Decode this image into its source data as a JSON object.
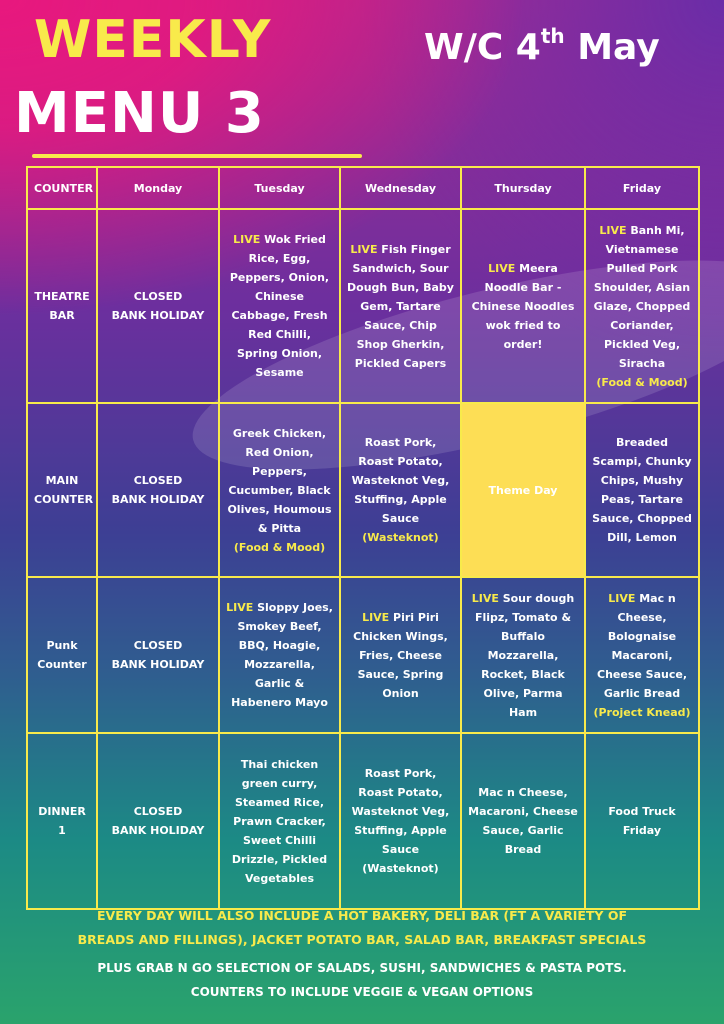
{
  "header": {
    "title_line1": "WEEKLY",
    "title_line2": "MENU 3",
    "week_prefix": "W/C 4",
    "week_suffix": "th",
    "week_month": " May"
  },
  "table": {
    "headers": [
      "COUNTER",
      "Monday",
      "Tuesday",
      "Wednesday",
      "Thursday",
      "Friday"
    ],
    "live_tag": "LIVE",
    "rows": [
      {
        "counter": [
          "THEATRE",
          "BAR"
        ],
        "monday": [
          "CLOSED",
          "BANK HOLIDAY"
        ],
        "tuesday": {
          "rest": " Wok Fried Rice, Egg, Peppers, Onion, Chinese Cabbage, Fresh Red Chilli, Spring Onion, Sesame"
        },
        "wednesday": {
          "rest": " Fish Finger Sandwich, Sour Dough Bun, Baby Gem, Tartare Sauce, Chip Shop Gherkin, Pickled Capers"
        },
        "thursday": {
          "rest": " Meera Noodle Bar - Chinese Noodles wok fried to order!"
        },
        "friday": {
          "rest": " Banh Mi, Vietnamese Pulled Pork Shoulder, Asian Glaze, Chopped Coriander, Pickled Veg, Siracha",
          "tag": "(Food & Mood)"
        }
      },
      {
        "counter": [
          "MAIN",
          "COUNTER"
        ],
        "monday": [
          "CLOSED",
          "BANK HOLIDAY"
        ],
        "tuesday": {
          "text": "Greek Chicken, Red Onion, Peppers, Cucumber, Black Olives, Houmous & Pitta",
          "tag": "(Food & Mood)"
        },
        "wednesday": {
          "text": "Roast Pork, Roast Potato, Wasteknot Veg, Stuffing, Apple Sauce",
          "tag": "(Wasteknot)"
        },
        "thursday": {
          "text": "Theme Day"
        },
        "friday": {
          "text": "Breaded Scampi, Chunky Chips, Mushy Peas, Tartare Sauce, Chopped Dill, Lemon"
        }
      },
      {
        "counter": [
          "Punk",
          "Counter"
        ],
        "monday": [
          "CLOSED",
          "BANK HOLIDAY"
        ],
        "tuesday": {
          "rest": " Sloppy Joes, Smokey Beef, BBQ, Hoagie, Mozzarella, Garlic & Habenero Mayo"
        },
        "wednesday": {
          "rest": " Piri Piri Chicken Wings, Fries, Cheese Sauce, Spring Onion"
        },
        "thursday": {
          "rest": " Sour dough Flipz, Tomato & Buffalo Mozzarella, Rocket, Black Olive, Parma Ham"
        },
        "friday": {
          "rest": " Mac n Cheese, Bolognaise Macaroni, Cheese Sauce, Garlic Bread",
          "tag": "(Project Knead)"
        }
      },
      {
        "counter": [
          "DINNER 1"
        ],
        "monday": [
          "CLOSED",
          "BANK HOLIDAY"
        ],
        "tuesday": {
          "text": "Thai chicken green curry, Steamed Rice, Prawn Cracker, Sweet Chilli Drizzle, Pickled Vegetables"
        },
        "wednesday": {
          "text": "Roast Pork, Roast Potato, Wasteknot Veg, Stuffing, Apple Sauce (Wasteknot)"
        },
        "thursday": {
          "text": "Mac n Cheese, Macaroni, Cheese Sauce, Garlic Bread"
        },
        "friday": {
          "text": "Food Truck Friday"
        }
      }
    ]
  },
  "footer": {
    "line1": "EVERY DAY WILL ALSO INCLUDE A HOT BAKERY, DELI BAR (FT A VARIETY OF",
    "line2": "BREADS AND FILLINGS), JACKET POTATO BAR, SALAD BAR, BREAKFAST SPECIALS",
    "line3": "PLUS GRAB N GO SELECTION OF SALADS, SUSHI, SANDWICHES & PASTA POTS.",
    "line4": "COUNTERS TO INCLUDE VEGGIE & VEGAN OPTIONS"
  },
  "colors": {
    "accent_yellow": "#f8ea4b",
    "theme_day_fill": "#fdde55",
    "text_white": "#ffffff",
    "top_pink": "#e8187e",
    "bottom_green": "#2aa36c"
  }
}
